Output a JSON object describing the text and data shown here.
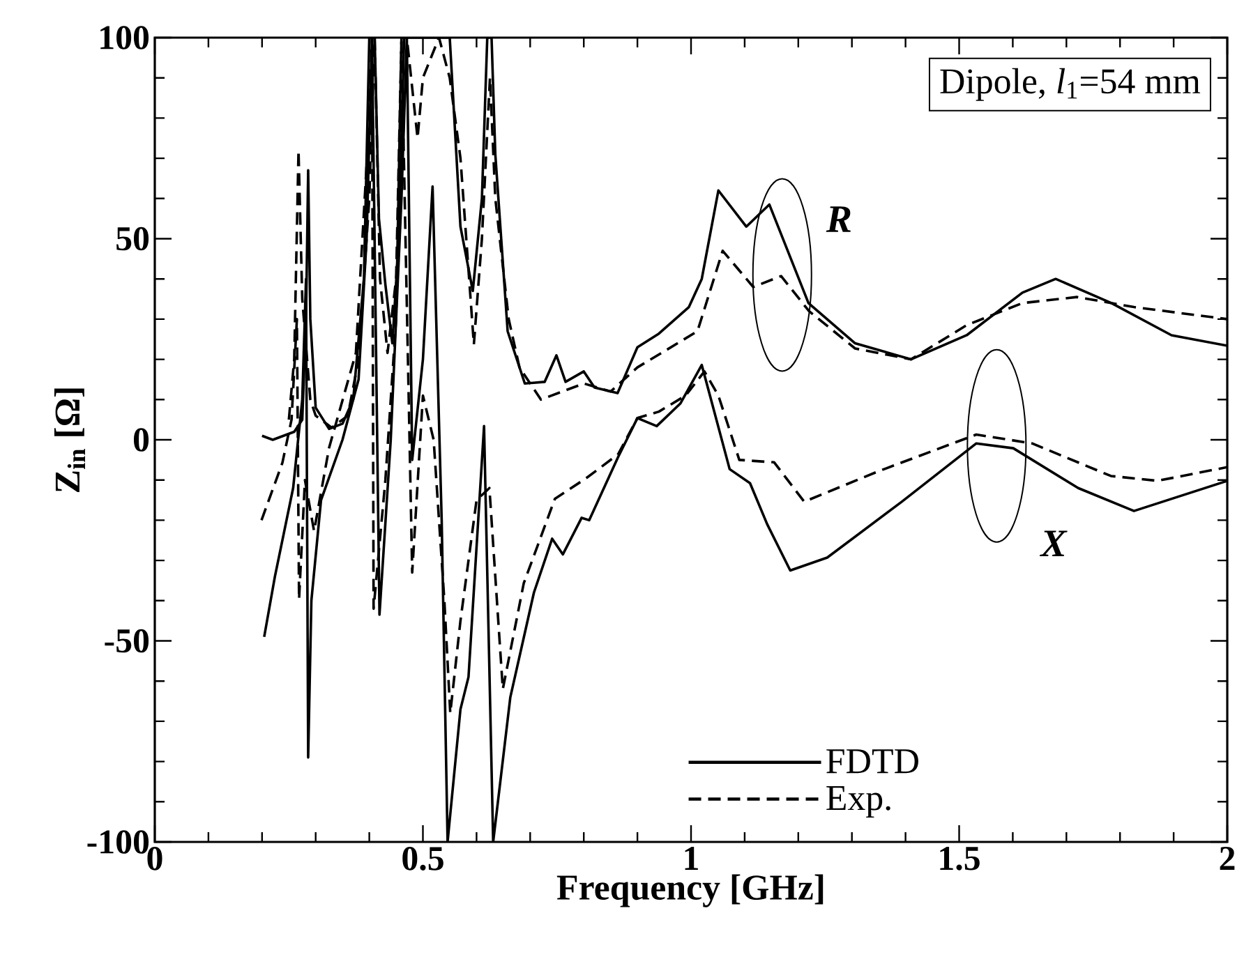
{
  "chart_data": {
    "type": "line",
    "xlabel": "Frequency [GHz]",
    "ylabel": "Z$_{in}$  [Ω]",
    "xlim": [
      0,
      2
    ],
    "ylim": [
      -100,
      100
    ],
    "xticks": [
      0,
      {
        "value": 0.1,
        "label": null
      },
      {
        "value": 0.2,
        "label": null
      },
      {
        "value": 0.3,
        "label": null
      },
      {
        "value": 0.4,
        "label": null
      },
      0.5,
      {
        "value": 0.6,
        "label": null
      },
      {
        "value": 0.7,
        "label": null
      },
      {
        "value": 0.8,
        "label": null
      },
      {
        "value": 0.9,
        "label": null
      },
      1,
      {
        "value": 1.1,
        "label": null
      },
      {
        "value": 1.2,
        "label": null
      },
      {
        "value": 1.3,
        "label": null
      },
      {
        "value": 1.4,
        "label": null
      },
      1.5,
      {
        "value": 1.6,
        "label": null
      },
      {
        "value": 1.7,
        "label": null
      },
      {
        "value": 1.8,
        "label": null
      },
      {
        "value": 1.9,
        "label": null
      },
      2
    ],
    "yticks": [
      -100,
      {
        "value": -90,
        "label": null
      },
      {
        "value": -80,
        "label": null
      },
      {
        "value": -70,
        "label": null
      },
      {
        "value": -60,
        "label": null
      },
      -50,
      {
        "value": -40,
        "label": null
      },
      {
        "value": -30,
        "label": null
      },
      {
        "value": -20,
        "label": null
      },
      {
        "value": -10,
        "label": null
      },
      0,
      {
        "value": 10,
        "label": null
      },
      {
        "value": 20,
        "label": null
      },
      {
        "value": 30,
        "label": null
      },
      {
        "value": 40,
        "label": null
      },
      50,
      {
        "value": 60,
        "label": null
      },
      {
        "value": 70,
        "label": null
      },
      {
        "value": 80,
        "label": null
      },
      {
        "value": 90,
        "label": null
      },
      100
    ],
    "legend": "bottom right",
    "grid": false,
    "marker": "none",
    "annotations": [
      "Dipole, *l*$_{1}$=54 mm",
      {
        "text": "R",
        "x": 1.17,
        "y": 41
      },
      {
        "text": "X",
        "x": 1.57,
        "y": -1.5
      }
    ],
    "series": [
      {
        "name": "FDTD",
        "color": "#000000",
        "line_style": "solid",
        "x": [
          0.2,
          0.22,
          0.24,
          0.26,
          0.275,
          0.282,
          0.286,
          0.29,
          0.3,
          0.325,
          0.35,
          0.37,
          0.39,
          0.4,
          0.41,
          0.418,
          0.43,
          0.443,
          0.455,
          0.465,
          0.5,
          0.55,
          0.57,
          0.593,
          0.61,
          0.62,
          0.628,
          0.635,
          0.658,
          0.69,
          0.727,
          0.749,
          0.766,
          0.8,
          0.82,
          0.863,
          0.9,
          0.94,
          0.996,
          1.02,
          1.051,
          1.103,
          1.146,
          1.219,
          1.306,
          1.41,
          1.514,
          1.618,
          1.68,
          1.784,
          1.896,
          2.0
        ],
        "values": [
          1,
          0,
          1,
          2,
          5,
          30,
          67,
          30,
          8,
          2.7,
          4,
          10,
          40,
          100,
          100,
          55,
          38.6,
          24,
          50,
          100,
          100,
          100,
          53,
          37,
          60,
          100,
          100,
          71,
          27,
          14,
          14.4,
          21,
          14.4,
          17,
          13,
          11.6,
          23,
          26.4,
          33,
          40,
          62,
          53,
          58.5,
          34,
          24,
          20,
          26,
          36.6,
          40,
          34,
          26,
          23.4
        ]
      },
      {
        "name": "Exp.",
        "color": "#000000",
        "line_style": "dashed",
        "x": [
          0.25,
          0.26,
          0.268,
          0.275,
          0.29,
          0.3,
          0.33,
          0.36,
          0.38,
          0.4,
          0.41,
          0.42,
          0.434,
          0.45,
          0.46,
          0.47,
          0.49,
          0.5,
          0.53,
          0.55,
          0.57,
          0.595,
          0.61,
          0.625,
          0.635,
          0.66,
          0.68,
          0.72,
          0.76,
          0.8,
          0.85,
          0.9,
          0.95,
          1.012,
          1.059,
          1.116,
          1.168,
          1.22,
          1.306,
          1.41,
          1.514,
          1.618,
          1.72,
          1.826,
          2.0
        ],
        "values": [
          5,
          20,
          72,
          35,
          10,
          6,
          3,
          6,
          20,
          60,
          100,
          40,
          21.6,
          40,
          100,
          100,
          75,
          90,
          100,
          90,
          70,
          23.7,
          50,
          90,
          60,
          30,
          18,
          10,
          12,
          14,
          12,
          18,
          22,
          27,
          47,
          38,
          40.7,
          32,
          22.7,
          20,
          28.5,
          34,
          35.5,
          33,
          30
        ]
      },
      {
        "color": "#000000",
        "line_style": "solid",
        "x": [
          0.204,
          0.224,
          0.258,
          0.275,
          0.282,
          0.286,
          0.292,
          0.31,
          0.35,
          0.38,
          0.395,
          0.405,
          0.419,
          0.44,
          0.46,
          0.47,
          0.48,
          0.5,
          0.518,
          0.535,
          0.546,
          0.57,
          0.585,
          0.614,
          0.631,
          0.663,
          0.707,
          0.741,
          0.761,
          0.796,
          0.81,
          0.864,
          0.9,
          0.936,
          0.98,
          1.02,
          1.072,
          1.11,
          1.142,
          1.185,
          1.254,
          1.393,
          1.532,
          1.601,
          1.722,
          1.826,
          2.0
        ],
        "values": [
          -49,
          -34,
          -12,
          10,
          40,
          -79,
          -40,
          -15,
          0,
          15,
          50,
          100,
          -43.5,
          0,
          60,
          100,
          -5,
          20,
          63,
          -20,
          -100,
          -67,
          -59,
          3.4,
          -100,
          -64,
          -38,
          -24.6,
          -28.5,
          -19.4,
          -20,
          -4.3,
          5.4,
          3.4,
          9,
          18.6,
          -7.3,
          -10.8,
          -21,
          -32.5,
          -29.3,
          -15.4,
          -0.9,
          -2.1,
          -12,
          -17.7,
          -10.2
        ]
      },
      {
        "color": "#000000",
        "line_style": "dashed",
        "x": [
          0.199,
          0.238,
          0.255,
          0.265,
          0.269,
          0.28,
          0.297,
          0.325,
          0.375,
          0.4,
          0.405,
          0.408,
          0.43,
          0.45,
          0.46,
          0.48,
          0.5,
          0.52,
          0.54,
          0.551,
          0.57,
          0.6,
          0.624,
          0.649,
          0.688,
          0.746,
          0.805,
          0.864,
          0.9,
          0.94,
          0.99,
          1.025,
          1.051,
          1.09,
          1.155,
          1.211,
          1.35,
          1.532,
          1.636,
          1.783,
          1.87,
          2.0
        ],
        "values": [
          -20,
          -5.7,
          5,
          30,
          -39.7,
          -10,
          -22.7,
          -2,
          21.6,
          80,
          100,
          -42,
          -10,
          30,
          100,
          -33,
          11,
          0,
          -40,
          -68,
          -45,
          -15,
          -12,
          -62,
          -35.7,
          -14.7,
          -9.5,
          -3.6,
          5.4,
          7,
          11,
          17,
          11,
          -5,
          -5.6,
          -15.4,
          -7.8,
          1.3,
          -0.9,
          -9,
          -10.2,
          -6.8
        ]
      }
    ]
  }
}
